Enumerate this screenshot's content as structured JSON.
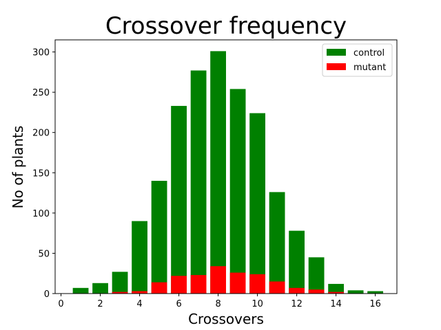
{
  "chart_data": {
    "type": "bar",
    "title": "Crossover frequency",
    "xlabel": "Crossovers",
    "ylabel": "No of plants",
    "x": [
      1,
      2,
      3,
      4,
      5,
      6,
      7,
      8,
      9,
      10,
      11,
      12,
      13,
      14,
      15,
      16
    ],
    "xlim": [
      -0.3,
      17.1
    ],
    "ylim": [
      0,
      315
    ],
    "xticks": [
      0,
      2,
      4,
      6,
      8,
      10,
      12,
      14,
      16
    ],
    "yticks": [
      0,
      50,
      100,
      150,
      200,
      250,
      300
    ],
    "series": [
      {
        "name": "control",
        "color": "#008000",
        "values": [
          7,
          13,
          27,
          90,
          140,
          233,
          277,
          301,
          254,
          224,
          126,
          78,
          45,
          12,
          4,
          3
        ]
      },
      {
        "name": "mutant",
        "color": "#ff0000",
        "values": [
          0,
          0,
          2,
          3,
          14,
          22,
          23,
          34,
          26,
          24,
          15,
          7,
          5,
          2,
          0,
          0
        ]
      }
    ],
    "bar_width": 0.8,
    "legend_position": "top-right",
    "grid": false
  }
}
